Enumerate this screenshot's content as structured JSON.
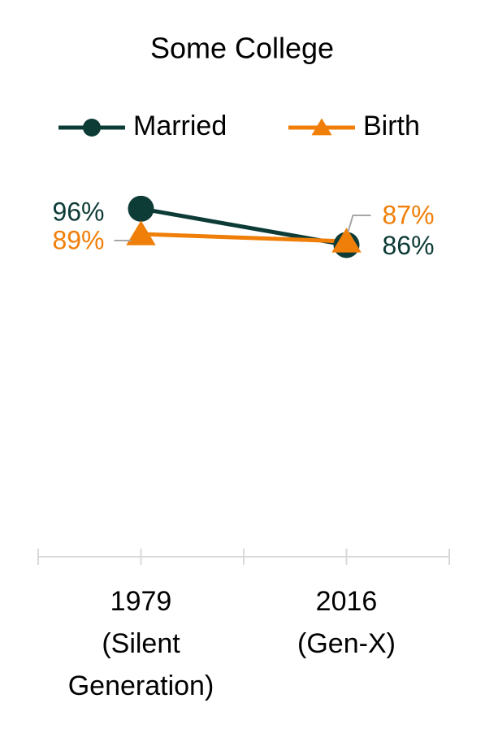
{
  "chart_data": {
    "type": "line",
    "title": "Some College",
    "categories": [
      [
        "1979",
        "(Silent",
        "Generation)"
      ],
      [
        "2016",
        "(Gen-X)"
      ]
    ],
    "series": [
      {
        "name": "Married",
        "color": "#0d3b36",
        "marker": "circle",
        "values": [
          96,
          86
        ],
        "value_labels": [
          "96%",
          "86%"
        ]
      },
      {
        "name": "Birth",
        "color": "#f07f09",
        "marker": "triangle",
        "values": [
          89,
          87
        ],
        "value_labels": [
          "89%",
          "87%"
        ]
      }
    ],
    "ylim": [
      0,
      100
    ],
    "grid": false
  }
}
